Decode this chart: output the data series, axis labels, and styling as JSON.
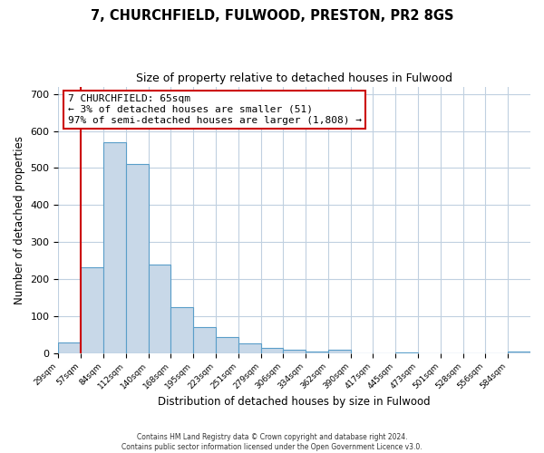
{
  "title": "7, CHURCHFIELD, FULWOOD, PRESTON, PR2 8GS",
  "subtitle": "Size of property relative to detached houses in Fulwood",
  "xlabel": "Distribution of detached houses by size in Fulwood",
  "ylabel": "Number of detached properties",
  "bin_labels": [
    "29sqm",
    "57sqm",
    "84sqm",
    "112sqm",
    "140sqm",
    "168sqm",
    "195sqm",
    "223sqm",
    "251sqm",
    "279sqm",
    "306sqm",
    "334sqm",
    "362sqm",
    "390sqm",
    "417sqm",
    "445sqm",
    "473sqm",
    "501sqm",
    "528sqm",
    "556sqm",
    "584sqm"
  ],
  "bar_heights": [
    28,
    232,
    570,
    510,
    240,
    125,
    70,
    42,
    27,
    14,
    10,
    5,
    8,
    0,
    0,
    2,
    0,
    0,
    0,
    0,
    5
  ],
  "bar_color": "#c8d8e8",
  "bar_edge_color": "#5a9ec9",
  "ylim": [
    0,
    720
  ],
  "yticks": [
    0,
    100,
    200,
    300,
    400,
    500,
    600,
    700
  ],
  "property_line_color": "#cc0000",
  "annotation_text": "7 CHURCHFIELD: 65sqm\n← 3% of detached houses are smaller (51)\n97% of semi-detached houses are larger (1,808) →",
  "annotation_box_color": "#cc0000",
  "footer_line1": "Contains HM Land Registry data © Crown copyright and database right 2024.",
  "footer_line2": "Contains public sector information licensed under the Open Government Licence v3.0.",
  "bg_color": "#ffffff",
  "grid_color": "#c0d0e0"
}
